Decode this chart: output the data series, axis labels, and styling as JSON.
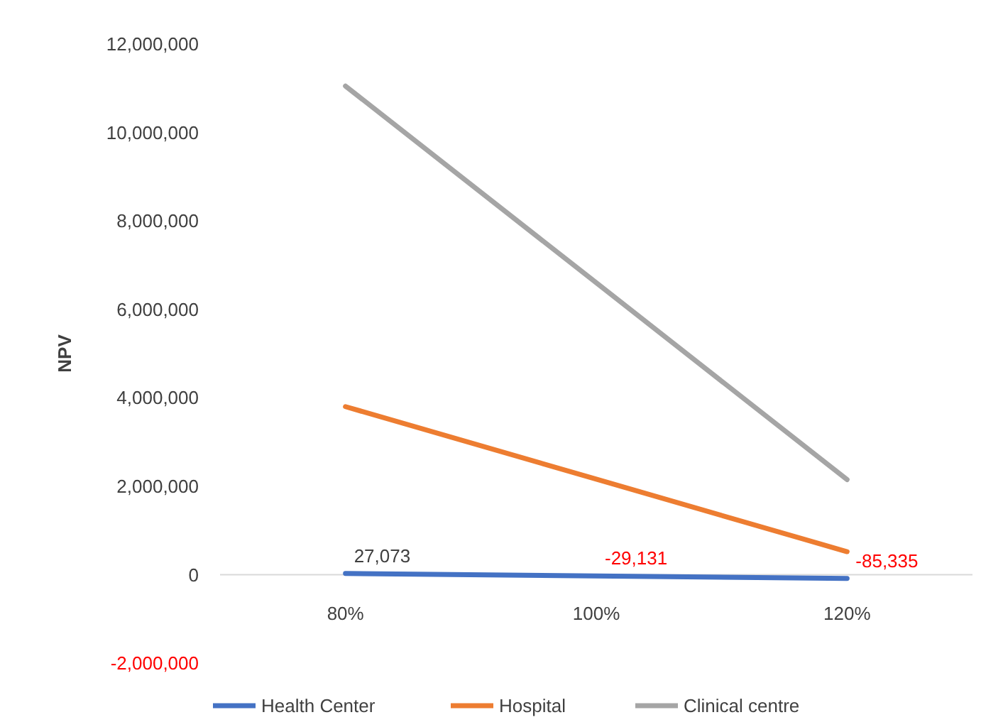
{
  "chart_data": {
    "type": "line",
    "ylabel": "NPV",
    "categories": [
      "80%",
      "100%",
      "120%"
    ],
    "ylim": [
      -2000000,
      12000000
    ],
    "yticks": [
      {
        "value": -2000000,
        "label": "-2,000,000"
      },
      {
        "value": 0,
        "label": "0"
      },
      {
        "value": 2000000,
        "label": "2,000,000"
      },
      {
        "value": 4000000,
        "label": "4,000,000"
      },
      {
        "value": 6000000,
        "label": "6,000,000"
      },
      {
        "value": 8000000,
        "label": "8,000,000"
      },
      {
        "value": 10000000,
        "label": "10,000,000"
      },
      {
        "value": 12000000,
        "label": "12,000,000"
      }
    ],
    "series": [
      {
        "name": "Health Center",
        "color": "#4472c4",
        "values": [
          27073,
          -29131,
          -85335
        ],
        "value_labels": [
          "27,073",
          "-29,131",
          "-85,335"
        ]
      },
      {
        "name": "Hospital",
        "color": "#ed7d31",
        "values": [
          3800000,
          2160000,
          520000
        ]
      },
      {
        "name": "Clinical centre",
        "color": "#a5a5a5",
        "values": [
          11050000,
          6600000,
          2150000
        ]
      }
    ],
    "grid": false,
    "legend": "bottom",
    "marker": "none",
    "line_style": "solid"
  }
}
